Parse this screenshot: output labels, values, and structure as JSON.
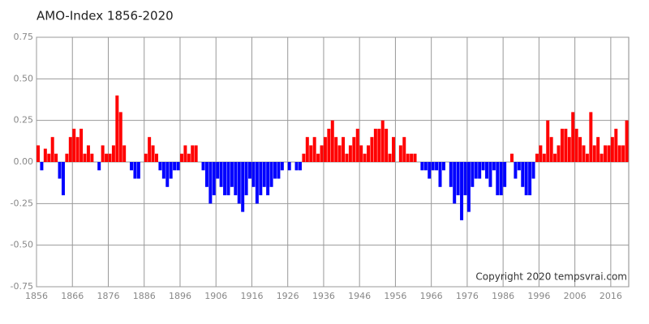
{
  "chart_data": {
    "type": "bar",
    "title": "AMO-Index 1856-2020",
    "annotation": "Copyright 2020 tempsvrai.com",
    "x": [
      1856,
      1857,
      1858,
      1859,
      1860,
      1861,
      1862,
      1863,
      1864,
      1865,
      1866,
      1867,
      1868,
      1869,
      1870,
      1871,
      1872,
      1873,
      1874,
      1875,
      1876,
      1877,
      1878,
      1879,
      1880,
      1881,
      1882,
      1883,
      1884,
      1885,
      1886,
      1887,
      1888,
      1889,
      1890,
      1891,
      1892,
      1893,
      1894,
      1895,
      1896,
      1897,
      1898,
      1899,
      1900,
      1901,
      1902,
      1903,
      1904,
      1905,
      1906,
      1907,
      1908,
      1909,
      1910,
      1911,
      1912,
      1913,
      1914,
      1915,
      1916,
      1917,
      1918,
      1919,
      1920,
      1921,
      1922,
      1923,
      1924,
      1925,
      1926,
      1927,
      1928,
      1929,
      1930,
      1931,
      1932,
      1933,
      1934,
      1935,
      1936,
      1937,
      1938,
      1939,
      1940,
      1941,
      1942,
      1943,
      1944,
      1945,
      1946,
      1947,
      1948,
      1949,
      1950,
      1951,
      1952,
      1953,
      1954,
      1955,
      1956,
      1957,
      1958,
      1959,
      1960,
      1961,
      1962,
      1963,
      1964,
      1965,
      1966,
      1967,
      1968,
      1969,
      1970,
      1971,
      1972,
      1973,
      1974,
      1975,
      1976,
      1977,
      1978,
      1979,
      1980,
      1981,
      1982,
      1983,
      1984,
      1985,
      1986,
      1987,
      1988,
      1989,
      1990,
      1991,
      1992,
      1993,
      1994,
      1995,
      1996,
      1997,
      1998,
      1999,
      2000,
      2001,
      2002,
      2003,
      2004,
      2005,
      2006,
      2007,
      2008,
      2009,
      2010,
      2011,
      2012,
      2013,
      2014,
      2015,
      2016,
      2017,
      2018,
      2019,
      2020
    ],
    "values": [
      0.1,
      -0.05,
      0.08,
      0.05,
      0.15,
      0.05,
      -0.1,
      -0.2,
      0.05,
      0.15,
      0.2,
      0.15,
      0.2,
      0.05,
      0.1,
      0.05,
      0.0,
      -0.05,
      0.1,
      0.05,
      0.05,
      0.1,
      0.4,
      0.3,
      0.1,
      0.0,
      -0.05,
      -0.1,
      -0.1,
      0.0,
      0.05,
      0.15,
      0.1,
      0.05,
      -0.05,
      -0.1,
      -0.15,
      -0.1,
      -0.05,
      -0.05,
      0.05,
      0.1,
      0.05,
      0.1,
      0.1,
      0.0,
      -0.05,
      -0.15,
      -0.25,
      -0.2,
      -0.1,
      -0.15,
      -0.2,
      -0.2,
      -0.15,
      -0.2,
      -0.25,
      -0.3,
      -0.2,
      -0.1,
      -0.15,
      -0.25,
      -0.2,
      -0.15,
      -0.2,
      -0.15,
      -0.1,
      -0.1,
      -0.05,
      0.0,
      -0.05,
      0.0,
      -0.05,
      -0.05,
      0.05,
      0.15,
      0.1,
      0.15,
      0.05,
      0.1,
      0.15,
      0.2,
      0.25,
      0.15,
      0.1,
      0.15,
      0.05,
      0.1,
      0.15,
      0.2,
      0.1,
      0.05,
      0.1,
      0.15,
      0.2,
      0.2,
      0.25,
      0.2,
      0.05,
      0.15,
      0.0,
      0.1,
      0.15,
      0.05,
      0.05,
      0.05,
      0.0,
      -0.05,
      -0.05,
      -0.1,
      -0.05,
      -0.05,
      -0.15,
      -0.05,
      0.0,
      -0.15,
      -0.25,
      -0.2,
      -0.35,
      -0.2,
      -0.3,
      -0.15,
      -0.1,
      -0.1,
      -0.05,
      -0.1,
      -0.15,
      -0.05,
      -0.2,
      -0.2,
      -0.15,
      0.0,
      0.05,
      -0.1,
      -0.05,
      -0.15,
      -0.2,
      -0.2,
      -0.1,
      0.05,
      0.1,
      0.05,
      0.25,
      0.15,
      0.05,
      0.1,
      0.2,
      0.2,
      0.15,
      0.3,
      0.2,
      0.15,
      0.1,
      0.05,
      0.3,
      0.1,
      0.15,
      0.05,
      0.1,
      0.1,
      0.15,
      0.2,
      0.1,
      0.1,
      0.25
    ],
    "positive_color": "#ff0000",
    "negative_color": "#0000ff",
    "xlim": [
      1856,
      2021
    ],
    "xticks": [
      1856,
      1866,
      1876,
      1886,
      1896,
      1906,
      1916,
      1926,
      1936,
      1946,
      1956,
      1966,
      1976,
      1986,
      1996,
      2006,
      2016
    ],
    "ylim": [
      -0.75,
      0.75
    ],
    "yticks": [
      -0.75,
      {
        "value": -0.5,
        "label": "-0.50"
      },
      -0.25,
      {
        "value": 0,
        "label": "0.00"
      },
      0.25,
      {
        "value": 0.5,
        "label": "0.50"
      },
      0.75
    ],
    "grid": true
  }
}
